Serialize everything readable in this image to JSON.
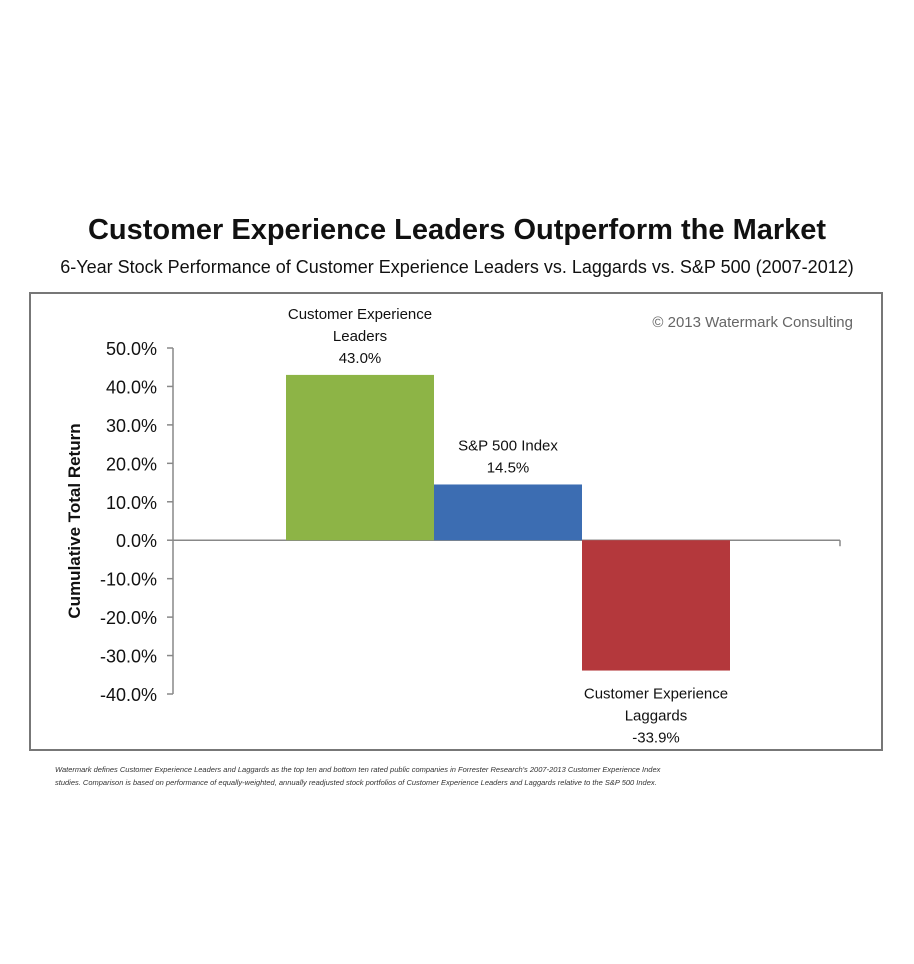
{
  "chart_data": {
    "type": "bar",
    "title": "Customer Experience Leaders Outperform the Market",
    "subtitle": "6-Year Stock Performance of Customer Experience Leaders vs. Laggards vs. S&P 500 (2007-2012)",
    "ylabel": "Cumulative Total Return",
    "ylim": [
      -40,
      50
    ],
    "yticks": [
      50,
      40,
      30,
      20,
      10,
      0,
      -10,
      -20,
      -30,
      -40
    ],
    "ytick_labels": [
      "50.0%",
      "40.0%",
      "30.0%",
      "20.0%",
      "10.0%",
      "0.0%",
      "-10.0%",
      "-20.0%",
      "-30.0%",
      "-40.0%"
    ],
    "categories": [
      "Customer Experience Leaders",
      "S&P 500 Index",
      "Customer Experience Laggards"
    ],
    "values": [
      43.0,
      14.5,
      -33.9
    ],
    "bars": [
      {
        "label_lines": [
          "Customer Experience",
          "Leaders"
        ],
        "value": 43.0,
        "value_label": "43.0%",
        "color": "#8db446"
      },
      {
        "label_lines": [
          "S&P 500 Index"
        ],
        "value": 14.5,
        "value_label": "14.5%",
        "color": "#3c6db2"
      },
      {
        "label_lines": [
          "Customer Experience",
          "Laggards"
        ],
        "value": -33.9,
        "value_label": "-33.9%",
        "color": "#b4383c"
      }
    ],
    "grid": false,
    "legend": "none",
    "annotation": "© 2013 Watermark Consulting"
  },
  "footnote": {
    "line1": "Watermark defines Customer Experience Leaders and Laggards as the top ten and bottom ten rated public companies in Forrester Research's 2007-2013  Customer Experience Index",
    "line2": "studies. Comparison is based on performance of equally-weighted, annually readjusted stock portfolios of Customer Experience Leaders and Laggards relative  to the S&P 500 Index."
  }
}
